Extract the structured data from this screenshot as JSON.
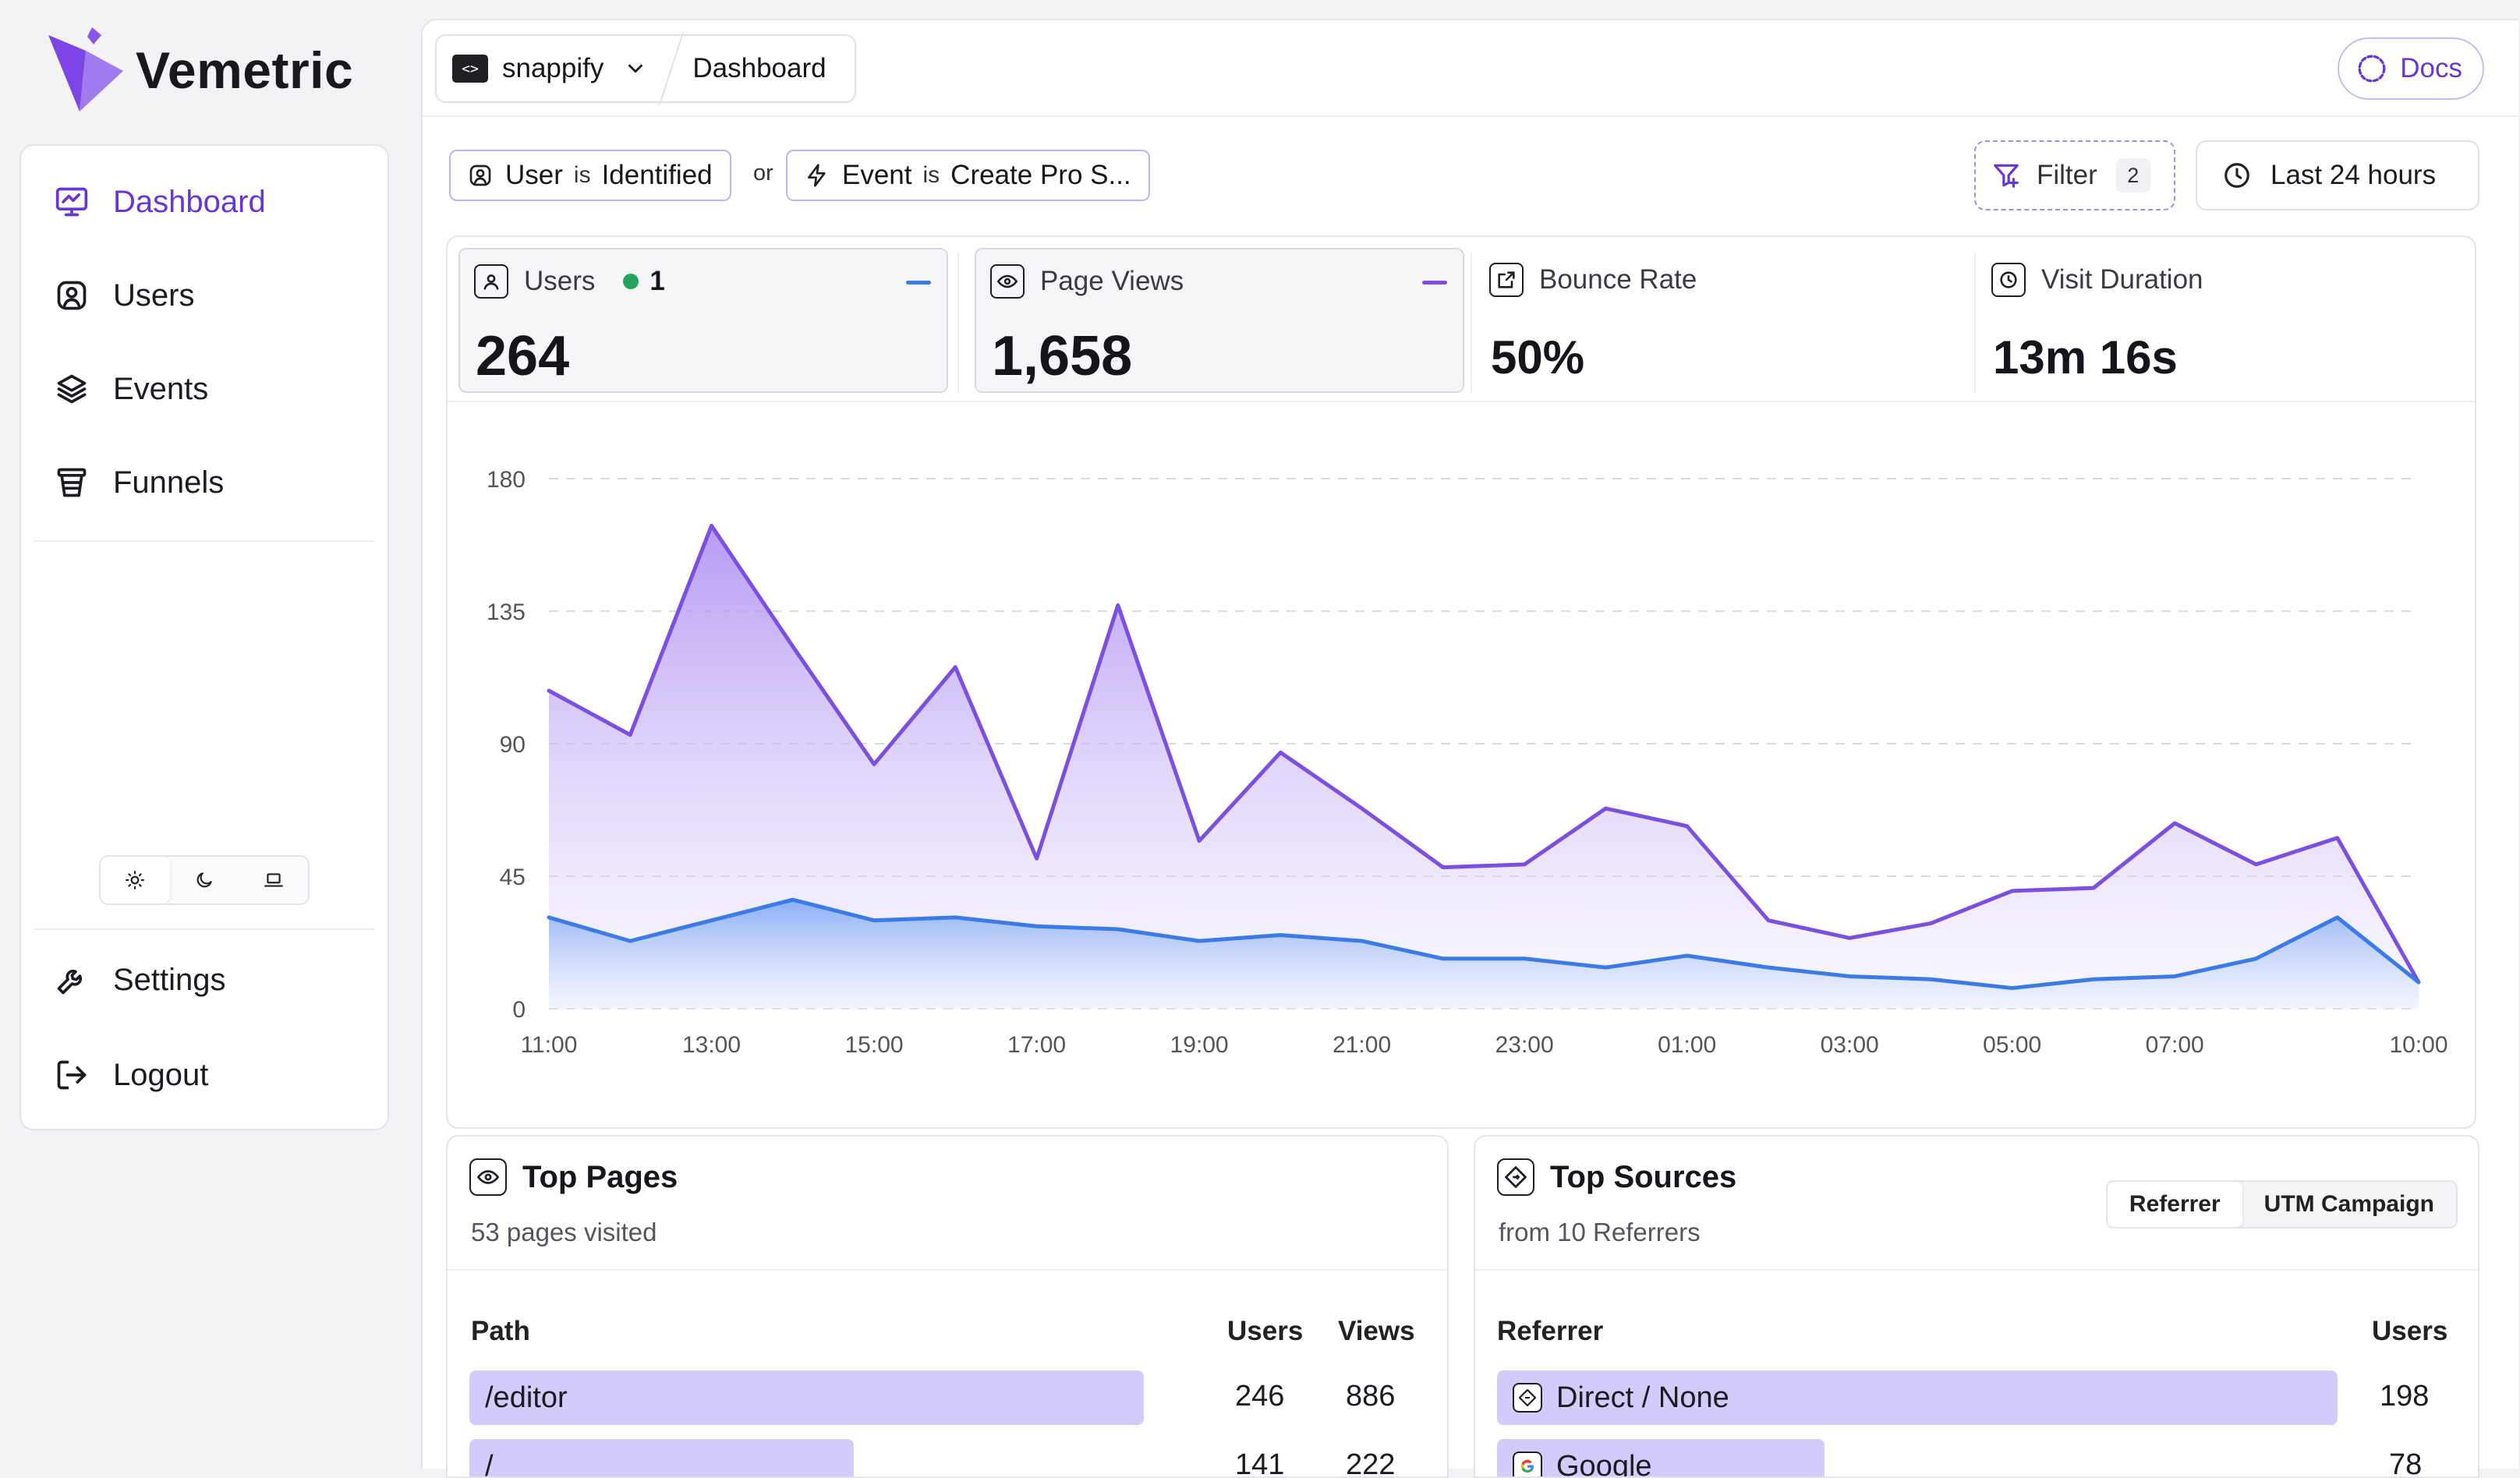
{
  "app": {
    "name": "Vemetric"
  },
  "sidebar": {
    "items": [
      {
        "label": "Dashboard",
        "icon": "dashboard-icon",
        "active": true
      },
      {
        "label": "Users",
        "icon": "users-icon"
      },
      {
        "label": "Events",
        "icon": "events-icon"
      },
      {
        "label": "Funnels",
        "icon": "funnels-icon"
      }
    ],
    "bottom_items": [
      {
        "label": "Settings",
        "icon": "settings-icon"
      },
      {
        "label": "Logout",
        "icon": "logout-icon"
      }
    ],
    "theme_options": [
      "light",
      "dark",
      "system"
    ],
    "theme_selected": "light"
  },
  "header": {
    "project": "snappify",
    "page": "Dashboard",
    "docs_label": "Docs"
  },
  "filters": {
    "chips": [
      {
        "field": "User",
        "op": "is",
        "value": "Identified"
      },
      {
        "field": "Event",
        "op": "is",
        "value": "Create Pro S..."
      }
    ],
    "joiner": "or",
    "filter_label": "Filter",
    "filter_count": "2",
    "range_label": "Last 24 hours"
  },
  "stats": [
    {
      "label": "Users",
      "value": "264",
      "live": "1",
      "selected": true
    },
    {
      "label": "Page Views",
      "value": "1,658",
      "selected": true
    },
    {
      "label": "Bounce Rate",
      "value": "50%"
    },
    {
      "label": "Visit Duration",
      "value": "13m 16s"
    }
  ],
  "colors": {
    "accent": "#6a35d6",
    "users_series": "#3b7be8",
    "pageviews_series": "#7b4fe0",
    "live_dot": "#22a55a"
  },
  "chart_data": {
    "type": "area",
    "x_ticks": [
      "11:00",
      "13:00",
      "15:00",
      "17:00",
      "19:00",
      "21:00",
      "23:00",
      "01:00",
      "03:00",
      "05:00",
      "07:00",
      "10:00"
    ],
    "y_ticks": [
      "0",
      "45",
      "90",
      "135",
      "180"
    ],
    "ylim": [
      0,
      180
    ],
    "grid": true,
    "series": [
      {
        "name": "Page Views",
        "color": "#7b4fe0",
        "values": [
          108,
          93,
          164,
          123,
          83,
          116,
          51,
          137,
          57,
          87,
          68,
          48,
          49,
          68,
          62,
          30,
          24,
          29,
          40,
          41,
          63,
          49,
          58,
          9
        ]
      },
      {
        "name": "Users",
        "color": "#3b7be8",
        "values": [
          31,
          23,
          30,
          37,
          30,
          31,
          28,
          27,
          23,
          25,
          23,
          17,
          17,
          14,
          18,
          14,
          11,
          10,
          7,
          10,
          11,
          17,
          31,
          9
        ]
      }
    ]
  },
  "top_pages": {
    "title": "Top Pages",
    "subtitle": "53 pages visited",
    "columns": [
      "Path",
      "Users",
      "Views"
    ],
    "rows": [
      {
        "path": "/editor",
        "users": "246",
        "views": "886",
        "share": 0.93
      },
      {
        "path": "/",
        "users": "141",
        "views": "222",
        "share": 0.53
      }
    ]
  },
  "top_sources": {
    "title": "Top Sources",
    "subtitle": "from 10 Referrers",
    "tabs": [
      "Referrer",
      "UTM Campaign"
    ],
    "active_tab": "Referrer",
    "columns": [
      "Referrer",
      "Users"
    ],
    "rows": [
      {
        "name": "Direct / None",
        "users": "198",
        "share": 1.0,
        "icon": "direct-icon"
      },
      {
        "name": "Google",
        "users": "78",
        "share": 0.39,
        "icon": "google-icon"
      }
    ]
  }
}
